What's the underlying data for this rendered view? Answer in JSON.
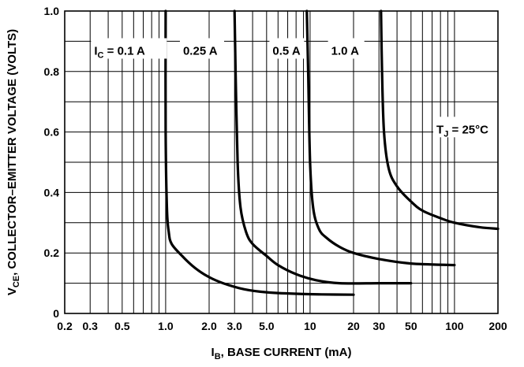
{
  "chart_data": {
    "type": "line",
    "x_scale": "log",
    "y_scale": "linear",
    "xlim": [
      0.2,
      200
    ],
    "ylim": [
      0,
      1.0
    ],
    "grid": true,
    "x_ticks": [
      0.2,
      0.3,
      0.5,
      1.0,
      2.0,
      3.0,
      5.0,
      10,
      20,
      30,
      50,
      100,
      200
    ],
    "x_tick_labels": [
      "0.2",
      "0.3",
      "0.5",
      "1.0",
      "2.0",
      "3.0",
      "5.0",
      "10",
      "20",
      "30",
      "50",
      "100",
      "200"
    ],
    "y_ticks": [
      0,
      0.2,
      0.4,
      0.6,
      0.8,
      1.0
    ],
    "y_tick_labels": [
      "0",
      "0.2",
      "0.4",
      "0.6",
      "0.8",
      "1.0"
    ],
    "xlabel": {
      "prefix": "I",
      "sub": "B",
      "suffix": ", BASE CURRENT (mA)"
    },
    "ylabel": {
      "prefix": "V",
      "sub": "CE",
      "suffix": ", COLLECTOR–EMITTER VOLTAGE (VOLTS)"
    },
    "annotation": {
      "prefix": "T",
      "sub": "J",
      "suffix": " = 25°C"
    },
    "series": [
      {
        "name": {
          "prefix": "I",
          "sub": "C",
          "suffix": " = 0.1 A"
        },
        "points": [
          [
            1.0,
            1.0
          ],
          [
            1.0,
            0.6
          ],
          [
            1.02,
            0.35
          ],
          [
            1.05,
            0.27
          ],
          [
            1.1,
            0.23
          ],
          [
            1.3,
            0.19
          ],
          [
            1.6,
            0.15
          ],
          [
            2.0,
            0.12
          ],
          [
            2.5,
            0.1
          ],
          [
            3.5,
            0.08
          ],
          [
            5.0,
            0.07
          ],
          [
            8.0,
            0.065
          ],
          [
            12,
            0.063
          ],
          [
            20,
            0.062
          ]
        ]
      },
      {
        "name": {
          "prefix": "0.25 A",
          "sub": "",
          "suffix": ""
        },
        "points": [
          [
            3.0,
            1.0
          ],
          [
            3.05,
            0.8
          ],
          [
            3.15,
            0.5
          ],
          [
            3.3,
            0.35
          ],
          [
            3.6,
            0.27
          ],
          [
            4.0,
            0.23
          ],
          [
            5.0,
            0.19
          ],
          [
            6.0,
            0.16
          ],
          [
            8.0,
            0.13
          ],
          [
            11,
            0.11
          ],
          [
            16,
            0.1
          ],
          [
            30,
            0.1
          ],
          [
            50,
            0.1
          ]
        ]
      },
      {
        "name": {
          "prefix": "0.5 A",
          "sub": "",
          "suffix": ""
        },
        "points": [
          [
            9.5,
            1.0
          ],
          [
            9.7,
            0.8
          ],
          [
            10,
            0.5
          ],
          [
            10.5,
            0.35
          ],
          [
            11.5,
            0.28
          ],
          [
            13,
            0.25
          ],
          [
            16,
            0.22
          ],
          [
            20,
            0.2
          ],
          [
            30,
            0.18
          ],
          [
            50,
            0.165
          ],
          [
            100,
            0.16
          ]
        ]
      },
      {
        "name": {
          "prefix": "1.0 A",
          "sub": "",
          "suffix": ""
        },
        "points": [
          [
            31,
            1.0
          ],
          [
            31.5,
            0.8
          ],
          [
            32.5,
            0.6
          ],
          [
            35,
            0.48
          ],
          [
            40,
            0.42
          ],
          [
            50,
            0.37
          ],
          [
            60,
            0.34
          ],
          [
            80,
            0.315
          ],
          [
            100,
            0.3
          ],
          [
            150,
            0.285
          ],
          [
            200,
            0.28
          ]
        ]
      }
    ]
  }
}
